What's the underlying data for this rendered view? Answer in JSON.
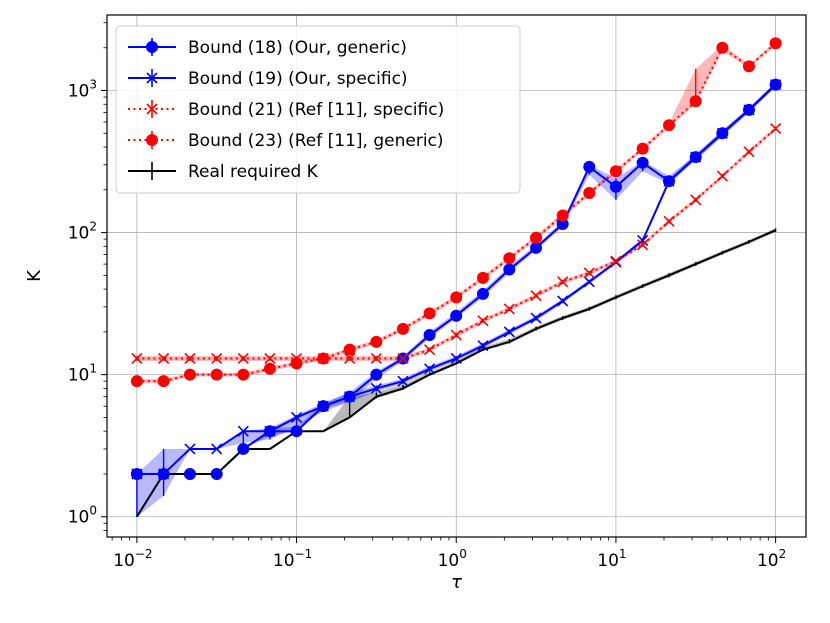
{
  "chart_data": {
    "type": "line",
    "xlabel": "τ",
    "ylabel": "K",
    "x_scale": "log",
    "y_scale": "log",
    "xlim": [
      0.0065,
      155
    ],
    "ylim": [
      0.72,
      3400
    ],
    "grid": true,
    "legend_position": "top-left",
    "x_ticks": [
      {
        "value": 0.01,
        "base": "10",
        "exp": "−2"
      },
      {
        "value": 0.1,
        "base": "10",
        "exp": "−1"
      },
      {
        "value": 1,
        "base": "10",
        "exp": "0"
      },
      {
        "value": 10,
        "base": "10",
        "exp": "1"
      },
      {
        "value": 100,
        "base": "10",
        "exp": "2"
      }
    ],
    "y_ticks": [
      {
        "value": 1,
        "base": "10",
        "exp": "0"
      },
      {
        "value": 10,
        "base": "10",
        "exp": "1"
      },
      {
        "value": 100,
        "base": "10",
        "exp": "2"
      },
      {
        "value": 1000,
        "base": "10",
        "exp": "3"
      }
    ],
    "x": [
      0.01,
      0.0147,
      0.0215,
      0.0316,
      0.0464,
      0.0681,
      0.1,
      0.147,
      0.215,
      0.316,
      0.464,
      0.681,
      1.0,
      1.47,
      2.15,
      3.16,
      4.64,
      6.81,
      10.0,
      14.7,
      21.5,
      31.6,
      46.4,
      68.1,
      100.0
    ],
    "series": [
      {
        "name": "Bound (18) (Our, generic)",
        "color": "#0000ff",
        "linestyle": "solid",
        "marker": "circle",
        "values": [
          2,
          2,
          2,
          2,
          3,
          4,
          4,
          6,
          7,
          10,
          13,
          19,
          26,
          37,
          55,
          78,
          115,
          290,
          210,
          310,
          230,
          340,
          500,
          730,
          1100
        ],
        "band_low": [
          2,
          2,
          2,
          2,
          3,
          3.7,
          4,
          5.7,
          6.5,
          9.3,
          12.5,
          18,
          25,
          35,
          52,
          75,
          110,
          255,
          170,
          270,
          220,
          325,
          475,
          700,
          1060
        ],
        "band_high": [
          2,
          2,
          2,
          2,
          3,
          4.2,
          4.3,
          6.3,
          7.5,
          10.5,
          13.5,
          20,
          27.5,
          39,
          58,
          82,
          120,
          300,
          240,
          320,
          250,
          355,
          525,
          760,
          1140
        ]
      },
      {
        "name": "Bound (19) (Our, specific)",
        "color": "#0000ff",
        "linestyle": "solid",
        "marker": "x",
        "values": [
          2,
          2,
          3,
          3,
          4,
          4,
          5,
          6,
          7,
          8,
          9,
          11,
          13,
          16,
          20,
          25,
          33,
          45,
          62,
          88,
          230,
          340,
          500,
          730,
          1100
        ],
        "band_low": [
          1,
          1.4,
          3,
          3,
          3.3,
          3.5,
          4.3,
          5.5,
          6.4,
          7.6,
          8.6,
          10.5,
          12.5,
          15.3,
          19.2,
          24,
          31.8,
          43.5,
          60,
          85,
          220,
          325,
          480,
          705,
          1060
        ],
        "band_high": [
          2,
          3,
          3,
          3,
          4,
          4.2,
          5.2,
          6.3,
          7.5,
          8.4,
          9.4,
          11.5,
          13.5,
          16.7,
          20.8,
          26,
          34.2,
          46.5,
          64,
          91,
          240,
          355,
          520,
          755,
          1140
        ]
      },
      {
        "name": "Bound (21) (Ref [11], specific)",
        "color": "#ff0000",
        "linestyle": "dotted",
        "marker": "x",
        "values": [
          13,
          13,
          13,
          13,
          13,
          13,
          13,
          13,
          13,
          13,
          13,
          15,
          19,
          24,
          29,
          36,
          45,
          52,
          63,
          82,
          120,
          170,
          250,
          370,
          540
        ],
        "band_low": [
          12.5,
          12.5,
          12.5,
          12.5,
          12.5,
          12.5,
          12.5,
          12.5,
          12.5,
          12.5,
          12.5,
          14.5,
          18.3,
          23.2,
          28,
          34.8,
          43.5,
          50.3,
          61,
          79.5,
          116,
          164,
          242,
          358,
          523
        ],
        "band_high": [
          13.5,
          13.5,
          13.5,
          13.5,
          13.5,
          13.5,
          13.5,
          13.5,
          13.5,
          13.5,
          13.5,
          15.5,
          19.7,
          24.8,
          30,
          37.2,
          46.5,
          53.7,
          65,
          84.5,
          124,
          176,
          258,
          382,
          557
        ]
      },
      {
        "name": "Bound (23) (Ref [11], generic)",
        "color": "#ff0000",
        "linestyle": "dotted",
        "marker": "circle",
        "values": [
          9,
          9,
          10,
          10,
          10,
          11,
          12,
          13,
          15,
          17,
          21,
          27,
          35,
          48,
          66,
          92,
          132,
          190,
          270,
          390,
          570,
          840,
          2000,
          1480,
          2150
        ],
        "band_low": [
          8.7,
          8.7,
          9.7,
          9.7,
          9.7,
          10.6,
          11.6,
          12.6,
          14.5,
          16.4,
          20.3,
          26,
          33.8,
          46.3,
          63.7,
          88.8,
          127,
          183,
          261,
          376,
          550,
          800,
          1900,
          1430,
          2080
        ],
        "band_high": [
          9.3,
          9.3,
          10.3,
          10.3,
          10.3,
          11.4,
          12.4,
          13.4,
          15.5,
          17.6,
          21.7,
          28,
          36.2,
          49.7,
          68.3,
          95.2,
          137,
          197,
          279,
          404,
          590,
          1420,
          2100,
          1530,
          2220
        ]
      },
      {
        "name": "Real required K",
        "color": "#000000",
        "linestyle": "solid",
        "marker": "none",
        "values": [
          1,
          2,
          2,
          2,
          3,
          3,
          4,
          4,
          5,
          7,
          8,
          10,
          12,
          15,
          17,
          21,
          25,
          29,
          35,
          42,
          50,
          60,
          72,
          86,
          104
        ],
        "band_low": [
          1,
          2,
          2,
          2,
          3,
          3,
          4,
          4,
          5,
          6.8,
          7.8,
          9.8,
          11.8,
          14.7,
          16.6,
          20.4,
          24.3,
          28.2,
          34,
          40.8,
          48.5,
          58.3,
          70,
          83.5,
          101
        ],
        "band_high": [
          1,
          2,
          2,
          2,
          3,
          3,
          4,
          4,
          7,
          7.5,
          8.5,
          10.4,
          12.4,
          15.6,
          17.8,
          21.8,
          25.9,
          30,
          36.2,
          43.4,
          51.8,
          62,
          74.3,
          88.7,
          107
        ]
      }
    ]
  }
}
